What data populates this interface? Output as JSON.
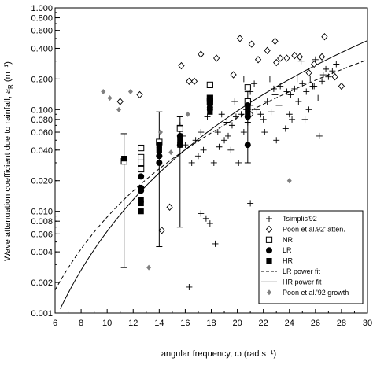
{
  "chart_data": {
    "type": "scatter",
    "xlabel": "angular frequency, ω (rad s⁻¹)",
    "ylabel_main": "Wave attenuation coefficient due to rainfall, ",
    "ylabel_symbol": "a",
    "ylabel_sub": "R",
    "ylabel_unit": " (m⁻¹)",
    "xlim": [
      6,
      30
    ],
    "ylim": [
      0.001,
      1.0
    ],
    "y_scale": "log",
    "x_ticks": [
      6,
      8,
      10,
      12,
      14,
      16,
      18,
      20,
      22,
      24,
      26,
      28,
      30
    ],
    "x_tick_labels": [
      "6",
      "8",
      "10",
      "12",
      "14",
      "16",
      "18",
      "20",
      "22",
      "24",
      "26",
      "28",
      "30"
    ],
    "y_ticks": [
      0.001,
      0.002,
      0.004,
      0.006,
      0.008,
      0.01,
      0.02,
      0.04,
      0.06,
      0.08,
      0.1,
      0.2,
      0.4,
      0.6,
      0.8,
      1.0
    ],
    "y_tick_labels": [
      "0.001",
      "0.002",
      "0.004",
      "0.006",
      "0.008",
      "0.010",
      "0.020",
      "0.040",
      "0.060",
      "0.080",
      "0.100",
      "0.200",
      "0.400",
      "0.600",
      "0.800",
      "1.000"
    ],
    "legend_position": "bottom-right",
    "series": [
      {
        "name": "Tsimplis'92",
        "marker": "plus",
        "points": [
          [
            17.6,
            0.0085
          ],
          [
            17.9,
            0.0076
          ],
          [
            18.3,
            0.0048
          ],
          [
            17.2,
            0.0095
          ],
          [
            16.3,
            0.0018
          ],
          [
            17.0,
            0.035
          ],
          [
            16.5,
            0.03
          ],
          [
            17.4,
            0.04
          ],
          [
            18.2,
            0.03
          ],
          [
            18.6,
            0.043
          ],
          [
            19.0,
            0.05
          ],
          [
            19.3,
            0.055
          ],
          [
            19.6,
            0.07
          ],
          [
            19.9,
            0.085
          ],
          [
            20.3,
            0.09
          ],
          [
            20.5,
            0.06
          ],
          [
            20.8,
            0.075
          ],
          [
            21.0,
            0.11
          ],
          [
            21.2,
            0.13
          ],
          [
            21.5,
            0.1
          ],
          [
            21.8,
            0.09
          ],
          [
            22.0,
            0.08
          ],
          [
            22.3,
            0.12
          ],
          [
            22.6,
            0.095
          ],
          [
            22.9,
            0.14
          ],
          [
            23.2,
            0.11
          ],
          [
            23.5,
            0.13
          ],
          [
            23.8,
            0.15
          ],
          [
            24.1,
            0.14
          ],
          [
            24.4,
            0.16
          ],
          [
            24.7,
            0.12
          ],
          [
            25.0,
            0.18
          ],
          [
            25.3,
            0.15
          ],
          [
            25.6,
            0.2
          ],
          [
            25.9,
            0.17
          ],
          [
            26.2,
            0.13
          ],
          [
            26.5,
            0.19
          ],
          [
            26.8,
            0.25
          ],
          [
            27.0,
            0.21
          ],
          [
            27.3,
            0.24
          ],
          [
            27.6,
            0.28
          ],
          [
            22.1,
            0.06
          ],
          [
            23.0,
            0.05
          ],
          [
            24.2,
            0.08
          ],
          [
            25.5,
            0.1
          ],
          [
            26.3,
            0.055
          ],
          [
            20.5,
            0.2
          ],
          [
            21.0,
            0.15
          ],
          [
            21.3,
            0.18
          ],
          [
            19.8,
            0.12
          ],
          [
            22.5,
            0.2
          ],
          [
            23.7,
            0.065
          ],
          [
            24.9,
            0.3
          ],
          [
            26.0,
            0.31
          ],
          [
            16.8,
            0.05
          ],
          [
            17.2,
            0.06
          ],
          [
            18.8,
            0.09
          ],
          [
            19.5,
            0.04
          ],
          [
            20.1,
            0.03
          ],
          [
            21.0,
            0.012
          ],
          [
            16.0,
            0.045
          ],
          [
            15.6,
            0.07
          ],
          [
            15.8,
            0.055
          ],
          [
            18.5,
            0.06
          ],
          [
            19.2,
            0.075
          ],
          [
            20.7,
            0.1
          ],
          [
            22.8,
            0.16
          ],
          [
            24.0,
            0.09
          ],
          [
            25.2,
            0.08
          ],
          [
            26.6,
            0.22
          ],
          [
            23.3,
            0.17
          ],
          [
            24.6,
            0.2
          ],
          [
            25.8,
            0.17
          ],
          [
            17.7,
            0.085
          ]
        ]
      },
      {
        "name": "Poon et al.92' atten.",
        "marker": "diamond-open",
        "points": [
          [
            11.0,
            0.12
          ],
          [
            12.5,
            0.14
          ],
          [
            14.2,
            0.0065
          ],
          [
            14.8,
            0.011
          ],
          [
            15.7,
            0.27
          ],
          [
            16.3,
            0.19
          ],
          [
            16.7,
            0.19
          ],
          [
            17.2,
            0.35
          ],
          [
            18.4,
            0.32
          ],
          [
            19.7,
            0.22
          ],
          [
            20.2,
            0.5
          ],
          [
            21.1,
            0.44
          ],
          [
            21.6,
            0.31
          ],
          [
            22.3,
            0.38
          ],
          [
            22.9,
            0.47
          ],
          [
            23.3,
            0.32
          ],
          [
            23.8,
            0.32
          ],
          [
            24.4,
            0.34
          ],
          [
            24.8,
            0.33
          ],
          [
            25.5,
            0.23
          ],
          [
            25.9,
            0.28
          ],
          [
            26.5,
            0.33
          ],
          [
            26.7,
            0.52
          ],
          [
            28.0,
            0.17
          ],
          [
            27.5,
            0.21
          ],
          [
            23.0,
            0.29
          ],
          [
            21.0,
            0.09
          ]
        ]
      },
      {
        "name": "NR",
        "marker": "square-open",
        "points": [
          [
            11.3,
            0.031
          ],
          [
            12.6,
            0.042
          ],
          [
            12.6,
            0.034
          ],
          [
            12.6,
            0.03
          ],
          [
            12.6,
            0.026
          ],
          [
            14.0,
            0.048
          ],
          [
            15.6,
            0.065
          ],
          [
            17.9,
            0.175
          ],
          [
            17.9,
            0.12
          ],
          [
            17.9,
            0.13
          ],
          [
            20.8,
            0.165
          ],
          [
            20.8,
            0.12
          ]
        ]
      },
      {
        "name": "LR",
        "marker": "circle-filled",
        "points": [
          [
            12.6,
            0.022
          ],
          [
            12.6,
            0.017
          ],
          [
            12.6,
            0.016
          ],
          [
            14.0,
            0.035
          ],
          [
            14.0,
            0.03
          ],
          [
            15.6,
            0.055
          ],
          [
            15.6,
            0.045
          ],
          [
            17.9,
            0.105
          ],
          [
            17.9,
            0.1
          ],
          [
            17.9,
            0.12
          ],
          [
            20.8,
            0.11
          ],
          [
            20.8,
            0.085
          ],
          [
            20.8,
            0.045
          ]
        ]
      },
      {
        "name": "HR",
        "marker": "square-filled",
        "points": [
          [
            11.3,
            0.033
          ],
          [
            12.6,
            0.013
          ],
          [
            12.6,
            0.012
          ],
          [
            12.6,
            0.01
          ],
          [
            14.0,
            0.045
          ],
          [
            14.0,
            0.04
          ],
          [
            15.6,
            0.045
          ],
          [
            15.6,
            0.05
          ],
          [
            17.9,
            0.13
          ],
          [
            17.9,
            0.11
          ],
          [
            17.9,
            0.095
          ],
          [
            20.8,
            0.1
          ],
          [
            20.8,
            0.09
          ]
        ]
      },
      {
        "name": "Poon et al.'92 growth",
        "marker": "diamond-filled",
        "points": [
          [
            9.7,
            0.15
          ],
          [
            10.2,
            0.13
          ],
          [
            10.9,
            0.1
          ],
          [
            11.8,
            0.15
          ],
          [
            13.2,
            0.0028
          ],
          [
            14.1,
            0.06
          ],
          [
            14.9,
            0.038
          ],
          [
            16.2,
            0.09
          ],
          [
            24.0,
            0.02
          ]
        ]
      }
    ],
    "error_bars": [
      {
        "x": 11.3,
        "low": 0.0028,
        "high": 0.058,
        "center": 0.032
      },
      {
        "x": 14.0,
        "low": 0.0045,
        "high": 0.095,
        "center": 0.035
      },
      {
        "x": 15.6,
        "low": 0.007,
        "high": 0.085,
        "center": 0.048
      },
      {
        "x": 20.8,
        "low": 0.03,
        "high": 0.15,
        "center": 0.1
      }
    ],
    "fits": [
      {
        "name": "LR power fit",
        "style": "dashed",
        "a": 5.06e-06,
        "b": 3.24
      },
      {
        "name": "HR power fit",
        "style": "solid",
        "a": 7.47e-07,
        "b": 3.93
      }
    ]
  }
}
